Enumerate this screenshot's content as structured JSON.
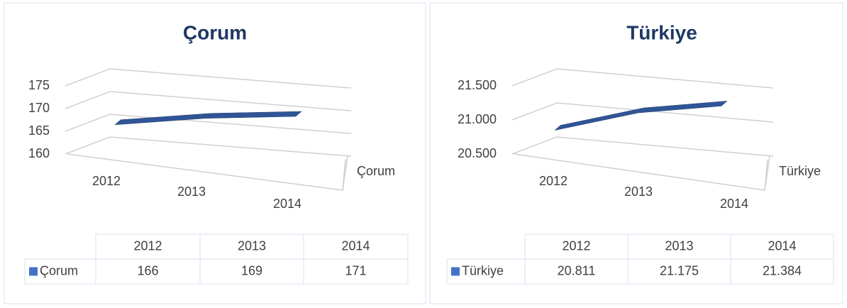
{
  "chart_data": [
    {
      "type": "line3d",
      "title": "Çorum",
      "categories": [
        "2012",
        "2013",
        "2014"
      ],
      "series": [
        {
          "name": "Çorum",
          "color": "#2f5597",
          "values": [
            166,
            169,
            171
          ]
        }
      ],
      "ylim": [
        160,
        175
      ],
      "yticks": [
        160,
        165,
        170,
        175
      ],
      "grid": true
    },
    {
      "type": "line3d",
      "title": "Türkiye",
      "categories": [
        "2012",
        "2013",
        "2014"
      ],
      "series": [
        {
          "name": "Türkiye",
          "color": "#2f5597",
          "values": [
            20811,
            21175,
            21384
          ],
          "value_labels": [
            "20.811",
            "21.175",
            "21.384"
          ]
        }
      ],
      "ylim": [
        20500,
        21500
      ],
      "yticks": [
        {
          "value": 20500,
          "label": "20.500"
        },
        {
          "value": 21000,
          "label": "21.000"
        },
        {
          "value": 21500,
          "label": "21.500"
        }
      ],
      "grid": true
    }
  ]
}
